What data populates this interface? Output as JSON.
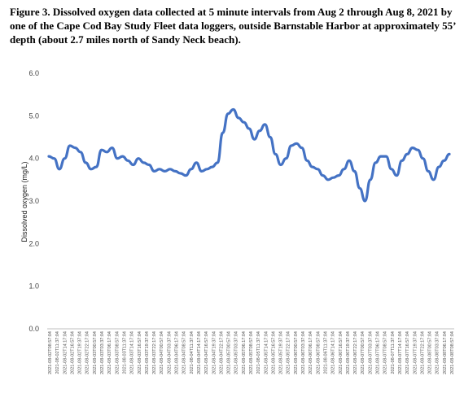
{
  "caption": "Figure 3.  Dissolved oxygen data collected at 5 minute intervals from Aug 2 through Aug 8, 2021 by one of the Cape Cod Bay Study Fleet data loggers, outside Barnstable Harbor at approximately 55’ depth (about 2.7 miles north of Sandy Neck beach).",
  "chart_data": {
    "type": "line",
    "title": "",
    "xlabel": "",
    "ylabel": "Dissolved oxygen (mg/L)",
    "ylim": [
      0,
      6
    ],
    "yticks": [
      "0.0",
      "1.0",
      "2.0",
      "3.0",
      "4.0",
      "5.0",
      "6.0"
    ],
    "grid": false,
    "legend": "none",
    "line_color": "#4472C4",
    "categories": [
      "2021-08-02T08:57:04",
      "2021-08-02T11:37:04",
      "2021-08-02T14:17:04",
      "2021-08-02T16:57:04",
      "2021-08-02T19:37:04",
      "2021-08-02T22:17:04",
      "2021-08-03T00:57:04",
      "2021-08-03T03:37:04",
      "2021-08-03T06:17:04",
      "2021-08-03T08:57:04",
      "2021-08-03T11:37:04",
      "2021-08-03T14:17:04",
      "2021-08-03T16:57:04",
      "2021-08-03T19:37:04",
      "2021-08-03T22:17:04",
      "2021-08-04T00:57:04",
      "2021-08-04T03:37:04",
      "2021-08-04T06:17:04",
      "2021-08-04T08:57:04",
      "2021-08-04T11:37:04",
      "2021-08-04T14:17:04",
      "2021-08-04T16:57:04",
      "2021-08-04T19:37:04",
      "2021-08-04T22:17:04",
      "2021-08-05T00:57:04",
      "2021-08-05T03:37:04",
      "2021-08-05T06:17:04",
      "2021-08-05T08:57:04",
      "2021-08-05T11:37:04",
      "2021-08-05T14:17:04",
      "2021-08-05T16:57:04",
      "2021-08-05T19:37:04",
      "2021-08-05T22:17:04",
      "2021-08-06T00:57:04",
      "2021-08-06T03:37:04",
      "2021-08-06T06:17:04",
      "2021-08-06T08:57:04",
      "2021-08-06T11:37:04",
      "2021-08-06T14:17:04",
      "2021-08-06T16:57:04",
      "2021-08-06T19:37:04",
      "2021-08-06T22:17:04",
      "2021-08-07T00:57:04",
      "2021-08-07T03:37:04",
      "2021-08-07T06:17:04",
      "2021-08-07T08:57:04",
      "2021-08-07T11:37:04",
      "2021-08-07T14:17:04",
      "2021-08-07T16:57:04",
      "2021-08-07T19:37:04",
      "2021-08-07T22:17:04",
      "2021-08-08T00:57:04",
      "2021-08-08T03:37:04",
      "2021-08-08T06:17:04",
      "2021-08-08T08:57:04"
    ],
    "series": [
      {
        "values": [
          4.05,
          4.0,
          3.75,
          4.0,
          4.3,
          4.25,
          4.15,
          3.9,
          3.75,
          3.8,
          4.2,
          4.15,
          4.25,
          4.0,
          4.05,
          3.95,
          3.85,
          4.0,
          3.9,
          3.85,
          3.7,
          3.75,
          3.7,
          3.75,
          3.7,
          3.65,
          3.6,
          3.75,
          3.9,
          3.7,
          3.75,
          3.8,
          3.9,
          4.6,
          5.05,
          5.15,
          4.95,
          4.85,
          4.7,
          4.45,
          4.65,
          4.8,
          4.5,
          4.1,
          3.85,
          4.0,
          4.3,
          4.35,
          4.25,
          3.95,
          3.8,
          3.75,
          3.6,
          3.5,
          3.55
        ]
      }
    ]
  },
  "chart_tail": [
    3.6,
    3.75,
    3.95,
    3.7,
    3.3,
    3.0,
    3.5,
    3.9,
    4.05,
    4.05,
    3.75,
    3.6,
    3.95,
    4.1,
    4.25,
    4.2,
    4.0,
    3.7,
    3.5,
    3.8,
    3.95,
    4.1
  ]
}
